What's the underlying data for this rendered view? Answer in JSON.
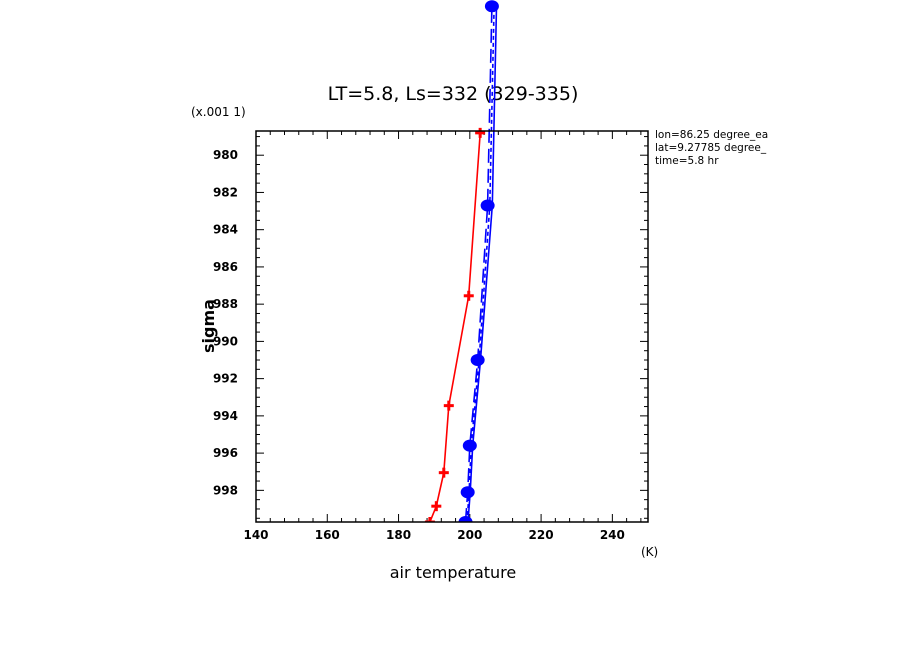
{
  "chart_data": {
    "type": "line",
    "title": "LT=5.8, Ls=332 (329-335)",
    "xlabel": "air temperature",
    "xunit": "(K)",
    "ylabel": "sigma",
    "yscale_label": "(x.001 1)",
    "xlim": [
      140,
      250
    ],
    "ylim": [
      978.7,
      999.7
    ],
    "y_inverted": true,
    "x_ticks": [
      140,
      160,
      180,
      200,
      220,
      240
    ],
    "y_ticks": [
      980,
      982,
      984,
      986,
      988,
      990,
      992,
      994,
      996,
      998
    ],
    "annotations": [
      "lon=86.25 degree_ea",
      "lat=9.27785 degree_",
      "time=5.8 hr"
    ],
    "series": [
      {
        "name": "red",
        "color": "#ff0000",
        "style": "solid",
        "marker": "cross",
        "x": [
          188.8,
          190.6,
          192.7,
          194.1,
          199.7,
          202.9
        ],
        "y": [
          999.7,
          998.85,
          997.05,
          993.45,
          987.55,
          978.8
        ]
      },
      {
        "name": "blue-solid",
        "color": "#0000ff",
        "style": "solid",
        "marker": "none",
        "x": [
          199.5,
          200.1,
          200.8,
          203.0,
          206.3,
          207.5
        ],
        "y": [
          999.7,
          998.1,
          995.6,
          991.0,
          982.7,
          972.0
        ]
      },
      {
        "name": "blue-long-dash",
        "color": "#0000ff",
        "style": "longdash",
        "marker": "dot",
        "x": [
          198.8,
          199.4,
          200.0,
          202.2,
          205.0,
          206.2
        ],
        "y": [
          999.7,
          998.1,
          995.6,
          991.0,
          982.7,
          972.0
        ]
      },
      {
        "name": "blue-short-dash",
        "color": "#0000ff",
        "style": "shortdash",
        "marker": "none",
        "x": [
          199.2,
          199.8,
          200.4,
          202.6,
          205.6,
          206.8
        ],
        "y": [
          999.7,
          998.1,
          995.6,
          991.0,
          982.7,
          972.0
        ]
      }
    ]
  }
}
